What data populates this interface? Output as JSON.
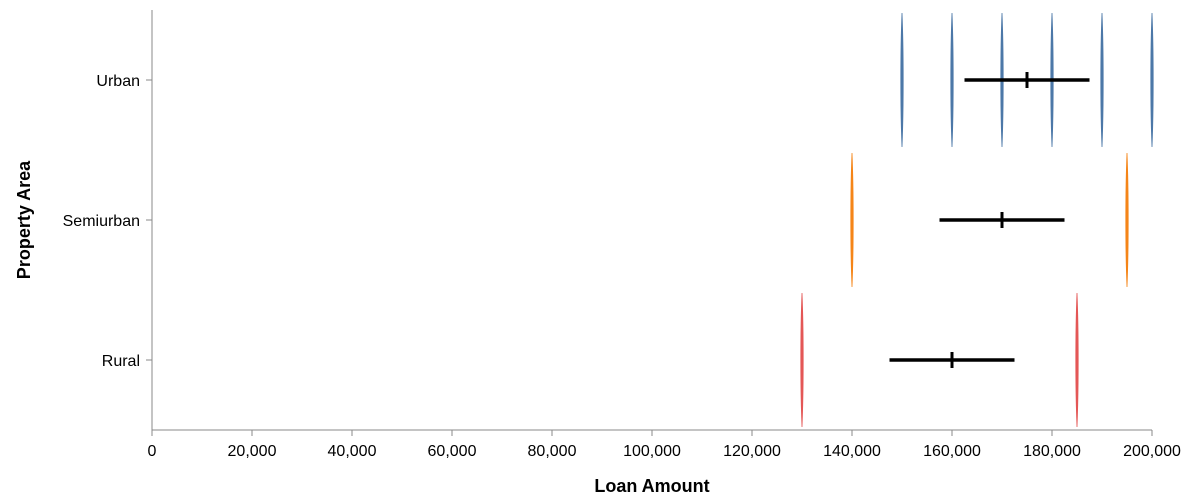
{
  "chart_data": {
    "type": "violin",
    "title": "",
    "xlabel": "Loan Amount",
    "ylabel": "Property Area",
    "xlim": [
      0,
      200000
    ],
    "x_ticks": [
      0,
      20000,
      40000,
      60000,
      80000,
      100000,
      120000,
      140000,
      160000,
      180000,
      200000
    ],
    "x_tick_labels": [
      "0",
      "20,000",
      "40,000",
      "60,000",
      "80,000",
      "100,000",
      "120,000",
      "140,000",
      "160,000",
      "180,000",
      "200,000"
    ],
    "categories": [
      "Urban",
      "Semiurban",
      "Rural"
    ],
    "grid": false,
    "series": [
      {
        "category": "Urban",
        "color": "#4c78a8",
        "density_peaks": [
          150000,
          160000,
          170000,
          180000,
          190000,
          200000
        ],
        "mean": 175000,
        "ci": [
          162500,
          187500
        ]
      },
      {
        "category": "Semiurban",
        "color": "#f58518",
        "density_peaks": [
          140000,
          195000
        ],
        "mean": 170000,
        "ci": [
          157500,
          182500
        ]
      },
      {
        "category": "Rural",
        "color": "#e45756",
        "density_peaks": [
          130000,
          185000
        ],
        "mean": 160000,
        "ci": [
          147500,
          172500
        ]
      }
    ]
  }
}
